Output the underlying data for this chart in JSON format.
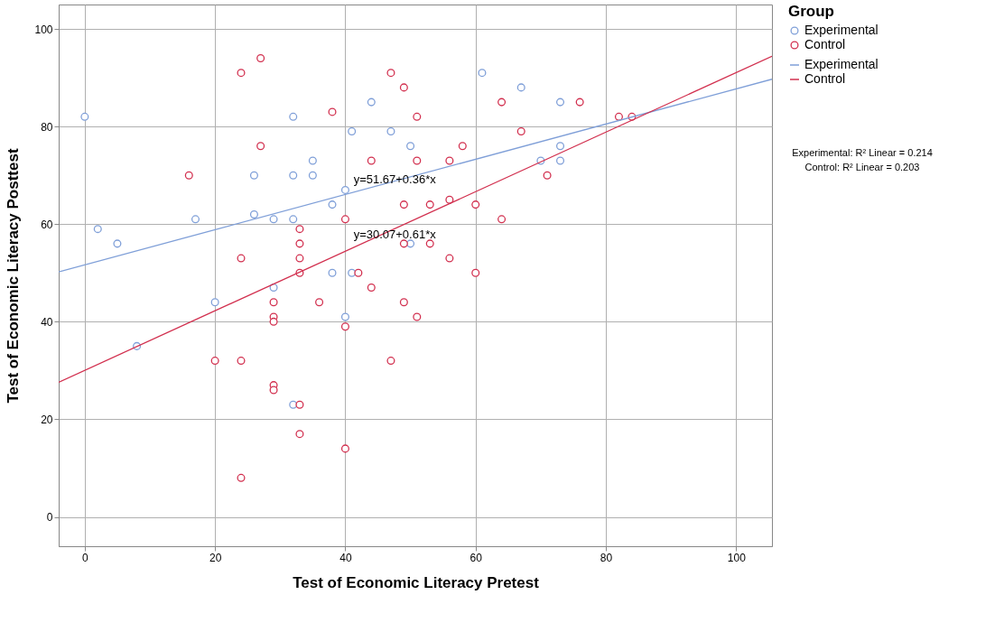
{
  "chart_data": {
    "type": "scatter",
    "xlabel": "Test of Economic Literacy Pretest",
    "ylabel": "Test of Economic Literacy Posttest",
    "legend_title": "Group",
    "xlim": [
      -4,
      105.5
    ],
    "ylim": [
      -6,
      105
    ],
    "xticks": [
      0,
      20,
      40,
      60,
      80,
      100
    ],
    "yticks": [
      0,
      20,
      40,
      60,
      80,
      100
    ],
    "grid": true,
    "legend": "right",
    "marker": "circle",
    "series": [
      {
        "name": "Experimental",
        "color": "#7f9fd8",
        "x": [
          0,
          2,
          5,
          8,
          17,
          20,
          26,
          26,
          29,
          29,
          32,
          32,
          32,
          32,
          35,
          35,
          38,
          38,
          40,
          40,
          41,
          41,
          44,
          47,
          50,
          50,
          61,
          67,
          70,
          73,
          73,
          73
        ],
        "values": [
          82,
          59,
          56,
          35,
          61,
          44,
          70,
          62,
          61,
          47,
          82,
          70,
          61,
          23,
          73,
          70,
          64,
          50,
          67,
          41,
          50,
          79,
          85,
          79,
          76,
          56,
          91,
          88,
          73,
          85,
          76,
          73
        ]
      },
      {
        "name": "Control",
        "color": "#d2304f",
        "x": [
          16,
          20,
          24,
          24,
          24,
          24,
          27,
          27,
          29,
          29,
          29,
          29,
          29,
          33,
          33,
          33,
          33,
          33,
          33,
          36,
          38,
          40,
          40,
          40,
          42,
          44,
          44,
          47,
          47,
          49,
          49,
          49,
          49,
          51,
          51,
          51,
          53,
          53,
          56,
          56,
          56,
          58,
          60,
          60,
          64,
          64,
          67,
          71,
          76,
          82,
          84
        ],
        "values": [
          70,
          32,
          91,
          53,
          32,
          8,
          94,
          76,
          44,
          41,
          40,
          27,
          26,
          59,
          56,
          53,
          50,
          23,
          17,
          44,
          83,
          61,
          39,
          14,
          50,
          73,
          47,
          91,
          32,
          88,
          64,
          56,
          44,
          82,
          73,
          41,
          64,
          56,
          73,
          65,
          53,
          76,
          64,
          50,
          85,
          61,
          79,
          70,
          85,
          82,
          82
        ]
      },
      {
        "name": "Experimental",
        "color": "#7f9fd8",
        "type": "line",
        "marker": "none",
        "x": [
          -4,
          105.5
        ],
        "values": [
          50.2,
          89.7
        ]
      },
      {
        "name": "Control",
        "color": "#d2304f",
        "type": "line",
        "marker": "none",
        "x": [
          -4,
          105.5
        ],
        "values": [
          27.6,
          94.4
        ]
      }
    ],
    "annotations": [
      {
        "text": "y=51.67+0.36*x",
        "x": 41,
        "y": 66.4
      },
      {
        "text": "y=30.07+0.61*x",
        "x": 41,
        "y": 55.1
      },
      "Experimental: R² Linear = 0.214",
      "Control: R² Linear = 0.203"
    ]
  }
}
